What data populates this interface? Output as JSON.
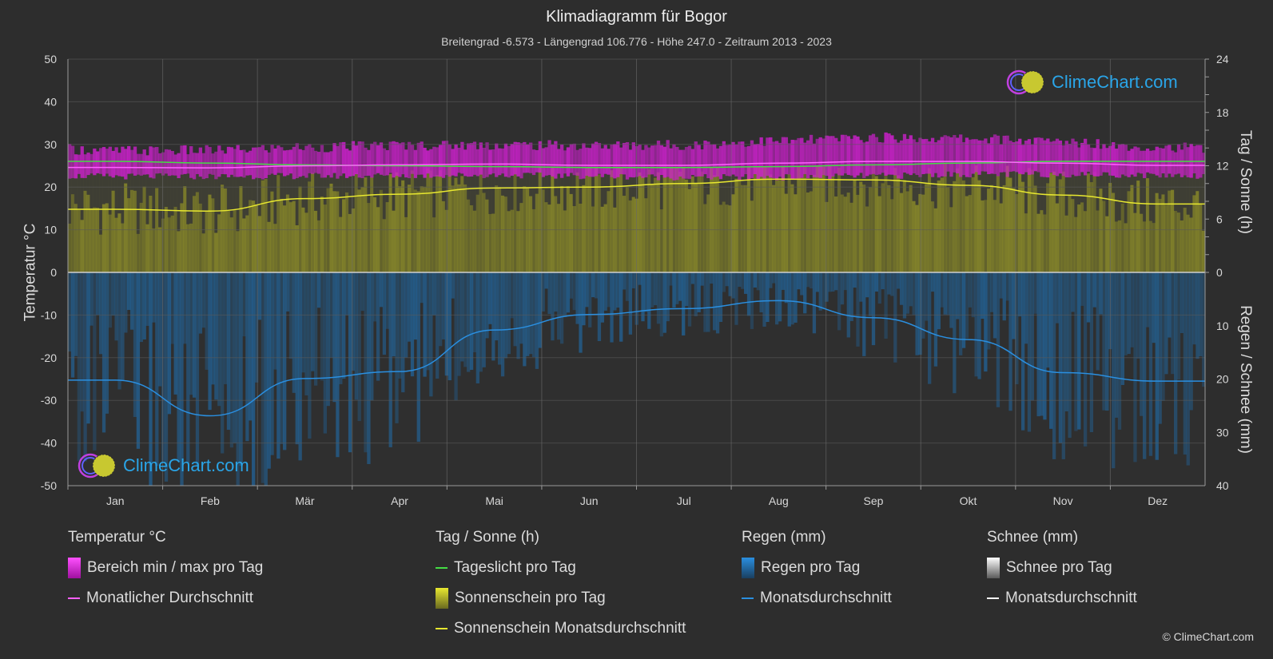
{
  "title": "Klimadiagramm für Bogor",
  "subtitle": "Breitengrad -6.573 - Längengrad 106.776 - Höhe 247.0 - Zeitraum 2013 - 2023",
  "axes": {
    "left_title": "Temperatur °C",
    "right_top_title": "Tag / Sonne (h)",
    "right_bottom_title": "Regen / Schnee (mm)"
  },
  "logo_text": "ClimeChart.com",
  "copyright": "© ClimeChart.com",
  "legend": {
    "temperature": {
      "heading": "Temperatur °C",
      "range_label": "Bereich min / max pro Tag",
      "avg_label": "Monatlicher Durchschnitt"
    },
    "sun": {
      "heading": "Tag / Sonne (h)",
      "daylight_label": "Tageslicht pro Tag",
      "sunshine_label": "Sonnenschein pro Tag",
      "sunshine_avg_label": "Sonnenschein Monatsdurchschnitt"
    },
    "rain": {
      "heading": "Regen (mm)",
      "rain_label": "Regen pro Tag",
      "avg_label": "Monatsdurchschnitt"
    },
    "snow": {
      "heading": "Schnee (mm)",
      "snow_label": "Schnee pro Tag",
      "avg_label": "Monatsdurchschnitt"
    }
  },
  "colors": {
    "background": "#2d2d2d",
    "temp_range": "#d020d0",
    "temp_avg": "#ff60ff",
    "daylight": "#44dd44",
    "sunshine_fill": "#8c8c2a",
    "sunshine_avg": "#e8e830",
    "rain_fill": "#1f6fb0",
    "rain_avg": "#2a8fe0",
    "snow": "#ffffff",
    "logo": "#2aa5e8"
  },
  "chart_data": {
    "type": "area",
    "months": [
      "Jan",
      "Feb",
      "Mär",
      "Apr",
      "Mai",
      "Jun",
      "Jul",
      "Aug",
      "Sep",
      "Okt",
      "Nov",
      "Dez"
    ],
    "left_axis": {
      "label": "Temperatur °C",
      "ylim": [
        -50,
        50
      ],
      "ticks": [
        50,
        40,
        30,
        20,
        10,
        0,
        -10,
        -20,
        -30,
        -40,
        -50
      ]
    },
    "right_axis_top": {
      "label": "Tag / Sonne (h)",
      "ylim": [
        0,
        24
      ],
      "ticks": [
        24,
        18,
        12,
        6,
        0
      ]
    },
    "right_axis_bottom": {
      "label": "Regen / Schnee (mm)",
      "ylim": [
        0,
        40
      ],
      "ticks": [
        0,
        10,
        20,
        30,
        40
      ]
    },
    "series": [
      {
        "name": "Bereich min / max pro Tag",
        "axis": "temperature",
        "min": [
          22.5,
          22.5,
          22.6,
          22.7,
          22.8,
          22.6,
          22.3,
          22.3,
          22.6,
          23.0,
          23.0,
          22.8
        ],
        "max": [
          28.5,
          28.6,
          29.3,
          29.8,
          29.9,
          29.7,
          29.9,
          30.8,
          31.6,
          31.4,
          30.6,
          29.4
        ]
      },
      {
        "name": "Monatlicher Durchschnitt",
        "axis": "temperature",
        "values": [
          24.6,
          24.5,
          25.0,
          25.2,
          25.4,
          25.1,
          25.1,
          25.6,
          26.0,
          26.0,
          25.6,
          25.1
        ]
      },
      {
        "name": "Tageslicht pro Tag",
        "axis": "sun_hours",
        "values": [
          12.5,
          12.3,
          12.1,
          12.0,
          11.9,
          11.8,
          11.8,
          11.9,
          12.1,
          12.3,
          12.5,
          12.5
        ]
      },
      {
        "name": "Sonnenschein Monatsdurchschnitt",
        "axis": "sun_hours",
        "values": [
          7.1,
          6.9,
          8.3,
          8.8,
          9.5,
          9.6,
          10.0,
          10.5,
          10.4,
          9.8,
          8.7,
          7.7
        ]
      },
      {
        "name": "Monatsdurchschnitt (Regen)",
        "axis": "precip_mm",
        "values": [
          20.2,
          26.9,
          19.9,
          18.6,
          10.8,
          7.9,
          6.8,
          5.3,
          8.5,
          12.6,
          18.8,
          20.4
        ]
      },
      {
        "name": "Monatsdurchschnitt (Schnee)",
        "axis": "precip_mm",
        "values": [
          0,
          0,
          0,
          0,
          0,
          0,
          0,
          0,
          0,
          0,
          0,
          0
        ]
      }
    ]
  }
}
